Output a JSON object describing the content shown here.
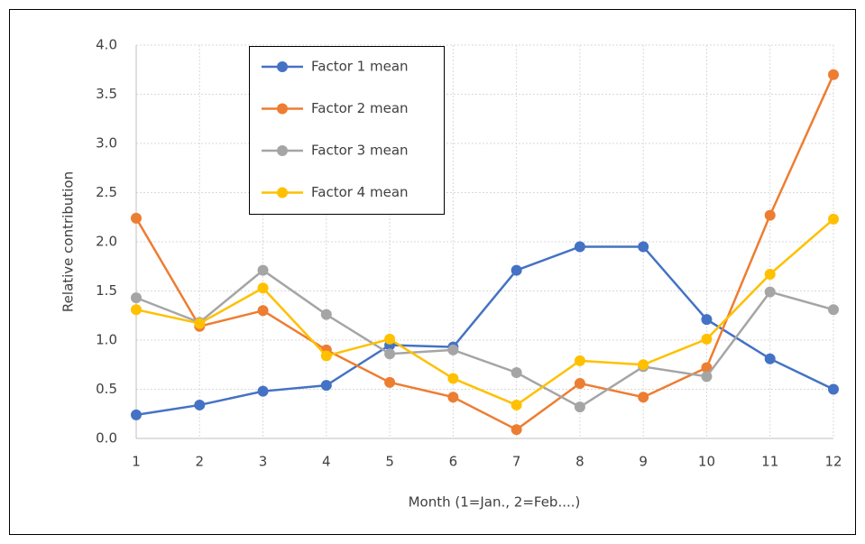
{
  "chart_data": {
    "type": "line",
    "x_label": "Month (1=Jan., 2=Feb....)",
    "y_label": "Relative contribution",
    "x": [
      1,
      2,
      3,
      4,
      5,
      6,
      7,
      8,
      9,
      10,
      11,
      12
    ],
    "xlim": [
      1,
      12
    ],
    "xticks": [
      1,
      2,
      3,
      4,
      5,
      6,
      7,
      8,
      9,
      10,
      11,
      12
    ],
    "ylim": [
      0,
      4
    ],
    "yticks": [
      {
        "value": 0,
        "label": "0.0"
      },
      {
        "value": 0.5,
        "label": "0.5"
      },
      {
        "value": 1,
        "label": "1.0"
      },
      {
        "value": 1.5,
        "label": "1.5"
      },
      {
        "value": 2,
        "label": "2.0"
      },
      {
        "value": 2.5,
        "label": "2.5"
      },
      {
        "value": 3,
        "label": "3.0"
      },
      {
        "value": 3.5,
        "label": "3.5"
      },
      {
        "value": 4,
        "label": "4.0"
      }
    ],
    "grid": true,
    "legend": "upper left",
    "series": [
      {
        "name": "Factor 1 mean",
        "color": "#4472c4",
        "values": [
          0.24,
          0.34,
          0.48,
          0.54,
          0.95,
          0.93,
          1.71,
          1.95,
          1.95,
          1.21,
          0.81,
          0.5
        ]
      },
      {
        "name": "Factor 2 mean",
        "color": "#ed7d31",
        "values": [
          2.24,
          1.14,
          1.3,
          0.9,
          0.57,
          0.42,
          0.09,
          0.56,
          0.42,
          0.72,
          2.27,
          3.7
        ]
      },
      {
        "name": "Factor 3 mean",
        "color": "#a5a5a5",
        "values": [
          1.43,
          1.18,
          1.71,
          1.26,
          0.86,
          0.9,
          0.67,
          0.32,
          0.73,
          0.63,
          1.49,
          1.31
        ]
      },
      {
        "name": "Factor 4 mean",
        "color": "#ffc000",
        "values": [
          1.31,
          1.17,
          1.53,
          0.84,
          1.01,
          0.61,
          0.34,
          0.79,
          0.75,
          1.01,
          1.67,
          2.23
        ]
      }
    ]
  }
}
